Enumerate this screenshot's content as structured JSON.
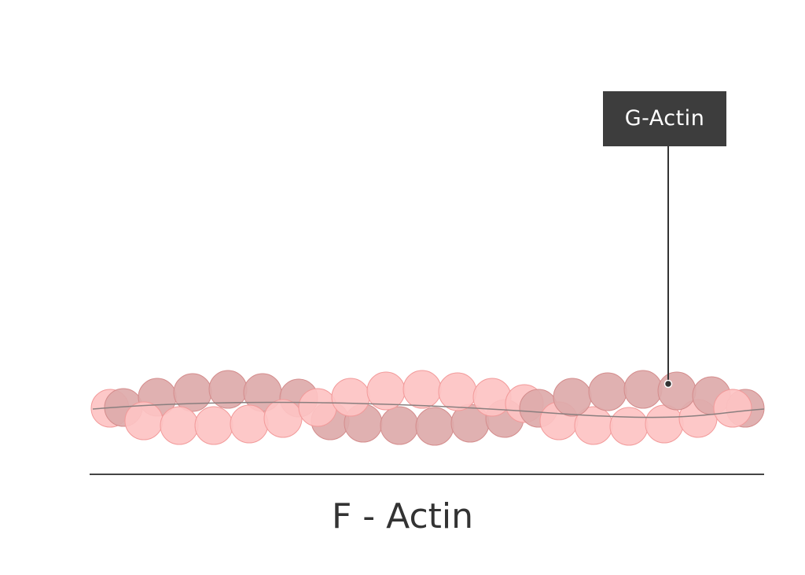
{
  "diagram": {
    "callout_label": "G-Actin",
    "caption": "F - Actin"
  },
  "colors": {
    "light_actin_fill": "#fdc3c3",
    "light_actin_stroke": "#f29a9a",
    "dark_actin_fill": "#ddaaaa",
    "dark_actin_stroke": "#d48c8c",
    "strand_line": "#8a7f7f",
    "callout_background": "#3d3d3d",
    "callout_text": "#ffffff",
    "leader_line": "#333333",
    "baseline": "#444444",
    "caption_text": "#333333"
  }
}
